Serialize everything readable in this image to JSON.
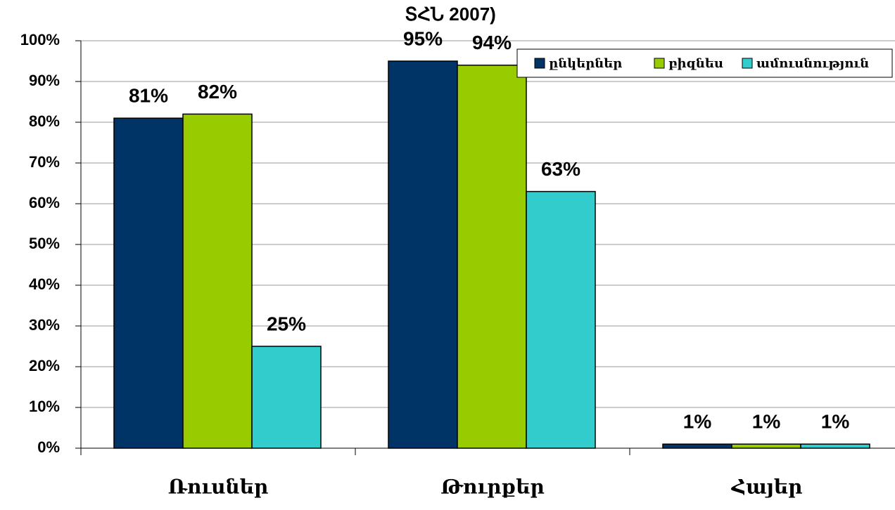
{
  "chart_data": {
    "type": "bar",
    "title": "ՏՀՆ 2007)",
    "categories": [
      "Ռուսներ",
      "Թուրքեր",
      "Հայեր"
    ],
    "series": [
      {
        "name": "ընկերներ",
        "color": "#003366",
        "values": [
          81,
          95,
          1
        ],
        "value_labels": [
          "81%",
          "95%",
          "1%"
        ]
      },
      {
        "name": "բիզնես",
        "color": "#99cc00",
        "values": [
          82,
          94,
          1
        ],
        "value_labels": [
          "82%",
          "94%",
          "1%"
        ]
      },
      {
        "name": "ամուսնություն",
        "color": "#33cccc",
        "values": [
          25,
          63,
          1
        ],
        "value_labels": [
          "25%",
          "63%",
          "1%"
        ]
      }
    ],
    "ylim": [
      0,
      100
    ],
    "yticks": [
      {
        "value": 0,
        "label": "0%"
      },
      {
        "value": 10,
        "label": "10%"
      },
      {
        "value": 20,
        "label": "20%"
      },
      {
        "value": 30,
        "label": "30%"
      },
      {
        "value": 40,
        "label": "40%"
      },
      {
        "value": 50,
        "label": "50%"
      },
      {
        "value": 60,
        "label": "60%"
      },
      {
        "value": 70,
        "label": "70%"
      },
      {
        "value": 80,
        "label": "80%"
      },
      {
        "value": 90,
        "label": "90%"
      },
      {
        "value": 100,
        "label": "100%"
      }
    ],
    "grid": true,
    "legend": "top-right"
  }
}
